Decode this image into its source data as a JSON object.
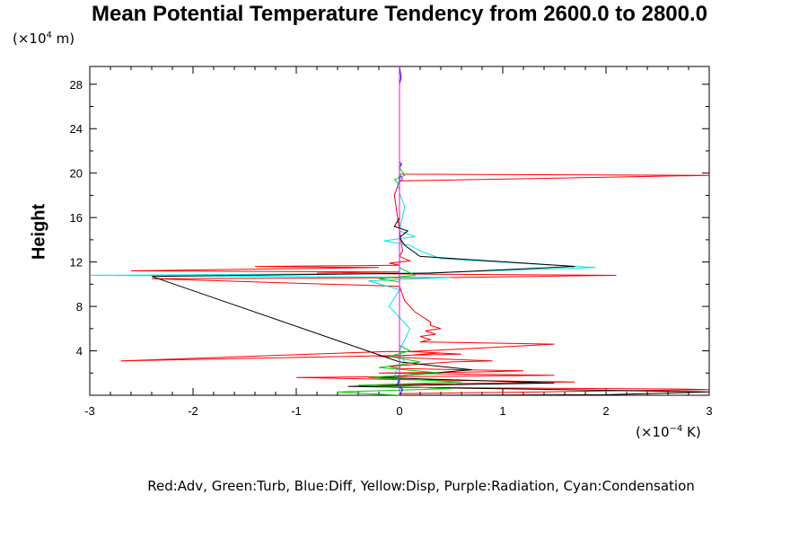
{
  "chart_data": {
    "type": "line",
    "title": "Mean Potential Temperature Tendency from 2600.0 to 2800.0",
    "ylabel": "Height",
    "y_units_label": {
      "prefix": "(×10",
      "exp": "4",
      "suffix": " m)"
    },
    "x_units_label": {
      "prefix": "(×10",
      "exp": "−4",
      "suffix": " K)"
    },
    "xlim": [
      -3,
      3
    ],
    "ylim": [
      0,
      29.6
    ],
    "xticks": [
      -3,
      -2,
      -1,
      0,
      1,
      2,
      3
    ],
    "xtick_labels": [
      "-3",
      "-2",
      "-1",
      "0",
      "1",
      "2",
      "3"
    ],
    "yticks": [
      4,
      8,
      12,
      16,
      20,
      24,
      28
    ],
    "ytick_labels": [
      "4",
      "8",
      "12",
      "16",
      "20",
      "24",
      "28"
    ],
    "grid": false,
    "legend_text": "Red:Adv, Green:Turb, Blue:Diff, Yellow:Disp, Purple:Radiation, Cyan:Condensation",
    "colors": {
      "red": "#ff0000",
      "green": "#00cc00",
      "blue": "#0000ff",
      "yellow": "#ffff00",
      "purple": "#ff00ff",
      "cyan": "#00e5e5",
      "black": "#000000"
    },
    "series": [
      {
        "name": "Adv",
        "color": "#ff0000",
        "x": [
          0.0,
          0.01,
          0.02,
          0.5,
          1.4,
          2.0,
          3.0,
          2.8,
          0.0,
          -0.3,
          0.2,
          1.7,
          0.1,
          -1.0,
          0.3,
          1.5,
          -0.2,
          0.8,
          1.2,
          0.0,
          -0.1,
          0.2,
          0.5,
          0.9,
          0.3,
          -0.2,
          0.1,
          0.3,
          0.4,
          0.2,
          -0.1,
          -2.7,
          0.6,
          0.1,
          0.9,
          1.5,
          0.2,
          0.3,
          0.2,
          0.35,
          0.25,
          0.4,
          0.3,
          0.3,
          0.15,
          0.05,
          0.0,
          -2.4,
          0.5,
          2.1,
          0.3,
          -0.8,
          0.0,
          -2.6,
          -0.2,
          -1.4,
          0.0,
          -0.1,
          0.1,
          0.0,
          0.03,
          -0.05,
          0.0,
          3.0,
          0.0,
          0.0
        ],
        "y": [
          0,
          0.1,
          0.15,
          0.2,
          0.3,
          0.4,
          0.5,
          0.55,
          0.7,
          0.85,
          1.0,
          1.2,
          1.4,
          1.6,
          1.7,
          1.8,
          2.0,
          2.1,
          2.2,
          2.4,
          2.6,
          2.8,
          3.0,
          3.1,
          3.3,
          3.5,
          3.6,
          3.75,
          3.8,
          3.9,
          3.95,
          3.1,
          3.7,
          3.95,
          4.3,
          4.6,
          4.8,
          5.0,
          5.3,
          5.5,
          5.8,
          6.0,
          6.3,
          6.6,
          7.5,
          8.5,
          9.8,
          10.5,
          10.6,
          10.8,
          10.9,
          11.0,
          11.1,
          11.2,
          11.5,
          11.6,
          11.7,
          11.9,
          12.1,
          12.5,
          13.0,
          18.0,
          19.3,
          19.8,
          19.9,
          29.6
        ]
      },
      {
        "name": "Condensation",
        "color": "#00e5e5",
        "x": [
          0.0,
          0.0,
          -0.05,
          0.05,
          0.0,
          0.1,
          -0.1,
          0.0,
          -0.3,
          0.5,
          -3.0,
          0.2,
          1.9,
          0.4,
          0.2,
          0.1,
          -0.15,
          0.15,
          0.0,
          0.05,
          0.0,
          0.0,
          -0.02,
          0.03,
          0.0,
          0.0
        ],
        "y": [
          0,
          1.0,
          2.0,
          3.0,
          4.0,
          6.0,
          8.0,
          9.5,
          10.3,
          10.6,
          10.8,
          11.0,
          11.5,
          12.3,
          13.0,
          13.5,
          13.9,
          14.3,
          14.8,
          17.0,
          18.2,
          18.5,
          19.0,
          19.5,
          20.0,
          29.6
        ]
      },
      {
        "name": "Black",
        "color": "#000000",
        "x": [
          0.0,
          2.0,
          3.0,
          -0.5,
          1.5,
          -0.2,
          0.7,
          0.0,
          -2.4,
          0.3,
          1.7,
          0.2,
          0.05,
          0.0,
          0.08,
          -0.05,
          0.0,
          0.0
        ],
        "y": [
          0,
          0.05,
          0.3,
          0.8,
          1.1,
          1.6,
          2.3,
          3.0,
          10.7,
          11.0,
          11.6,
          12.5,
          13.5,
          14.2,
          14.8,
          15.2,
          16.0,
          29.6
        ]
      },
      {
        "name": "Turb",
        "color": "#00cc00",
        "x": [
          0.0,
          -0.6,
          0.5,
          -0.4,
          0.6,
          -0.3,
          0.4,
          -0.2,
          0.2,
          -0.1,
          0.1,
          0.0,
          0.0,
          -0.2,
          0.15,
          0.0,
          0.0,
          0.0,
          -0.05,
          0.05,
          0.0,
          0.0
        ],
        "y": [
          0,
          0.3,
          0.6,
          0.9,
          1.2,
          1.6,
          2.0,
          2.5,
          3.0,
          3.5,
          4.0,
          4.5,
          10.2,
          10.5,
          10.8,
          11.5,
          18.0,
          19.0,
          19.4,
          19.8,
          20.5,
          29.6
        ]
      },
      {
        "name": "Diff",
        "color": "#0000ff",
        "x": [
          0.0,
          0.03,
          -0.02,
          0.0,
          0.0,
          0.02,
          0.0,
          0.0,
          0.015,
          0.0
        ],
        "y": [
          0,
          0.5,
          1.0,
          1.5,
          20.5,
          20.8,
          21.0,
          28.0,
          28.6,
          29.6
        ]
      },
      {
        "name": "Radiation",
        "color": "#ff00ff",
        "x": [
          0.0,
          0.0,
          0.03,
          0.0,
          0.0
        ],
        "y": [
          0,
          19.2,
          19.5,
          19.8,
          29.6
        ]
      }
    ]
  }
}
